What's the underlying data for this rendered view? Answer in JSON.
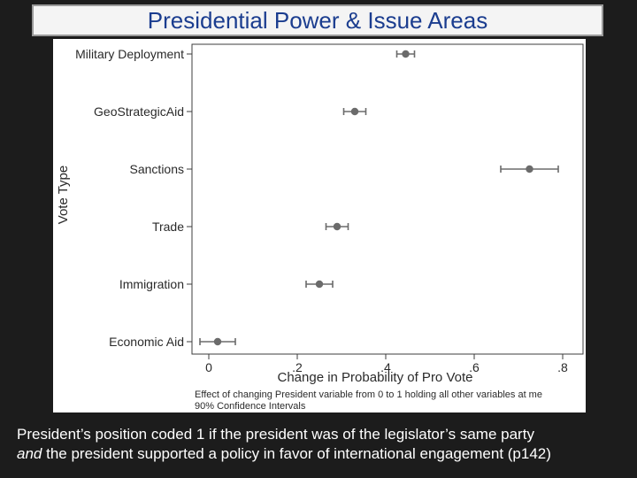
{
  "slide": {
    "title": "Presidential Power & Issue Areas",
    "caption_line1": "President’s position coded 1 if the president was of the legislator’s same party",
    "caption_line2_em": "and",
    "caption_line2_rest": " the president supported a policy in favor of international engagement (p142)"
  },
  "chart_data": {
    "type": "scatter",
    "orientation": "horizontal-dot-with-error-bars",
    "xlabel": "Change in Probability of Pro Vote",
    "ylabel": "Vote Type",
    "xlim": [
      -0.04,
      0.82
    ],
    "xticks": [
      {
        "value": 0,
        "label": "0"
      },
      {
        "value": 0.2,
        "label": ".2"
      },
      {
        "value": 0.4,
        "label": ".4"
      },
      {
        "value": 0.6,
        "label": ".6"
      },
      {
        "value": 0.8,
        "label": ".8"
      }
    ],
    "categories": [
      "Military Deployment",
      "GeoStrategicAid",
      "Sanctions",
      "Trade",
      "Immigration",
      "Economic Aid"
    ],
    "points": [
      {
        "label": "Military Deployment",
        "estimate": 0.445,
        "lower": 0.425,
        "upper": 0.465
      },
      {
        "label": "GeoStrategicAid",
        "estimate": 0.33,
        "lower": 0.305,
        "upper": 0.355
      },
      {
        "label": "Sanctions",
        "estimate": 0.725,
        "lower": 0.66,
        "upper": 0.79
      },
      {
        "label": "Trade",
        "estimate": 0.29,
        "lower": 0.265,
        "upper": 0.315
      },
      {
        "label": "Immigration",
        "estimate": 0.25,
        "lower": 0.22,
        "upper": 0.28
      },
      {
        "label": "Economic Aid",
        "estimate": 0.02,
        "lower": -0.02,
        "upper": 0.06
      }
    ],
    "notes": [
      "Effect of changing President variable from 0 to 1 holding all other variables at me",
      "90% Confidence Intervals"
    ],
    "grid": false,
    "colors": {
      "marker": "#6b6b6b",
      "axis": "#3c3c3c",
      "text": "#2a2a2a"
    }
  }
}
